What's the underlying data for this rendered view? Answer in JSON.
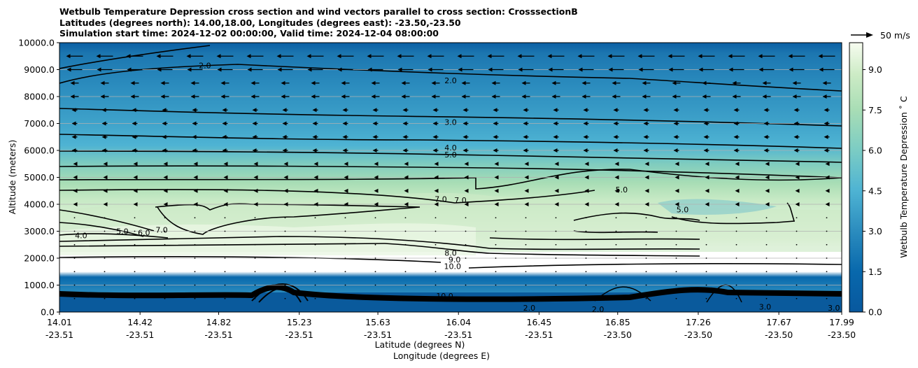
{
  "title_lines": [
    "Wetbulb Temperature Depression cross section and wind vectors parallel to cross section: CrosssectionB",
    "Latitudes (degrees north): 14.00,18.00, Longitudes (degrees east): -23.50,-23.50",
    "Simulation start time: 2024-12-02 00:00:00, Valid time: 2024-12-04 08:00:00"
  ],
  "colors": {
    "low": "#08589e",
    "mid": "#4eb3d3",
    "high": "#a8ddb5",
    "top": "#f7fcf0",
    "contour": "#000000",
    "grid": "#b0b0b0"
  },
  "chart_data": {
    "type": "contour",
    "title": "Wetbulb Temperature Depression cross section and wind vectors parallel to cross section: CrosssectionB",
    "xlabel_1": "Latitude (degrees N)",
    "xlabel_2": "Longitude (degrees E)",
    "ylabel": "Altitude (meters)",
    "ylim": [
      0,
      10000
    ],
    "xlim": [
      14.01,
      17.99
    ],
    "x_ticks": [
      {
        "lat": "14.01",
        "lon": "-23.51",
        "v": 14.01
      },
      {
        "lat": "14.42",
        "lon": "-23.51",
        "v": 14.42
      },
      {
        "lat": "14.82",
        "lon": "-23.51",
        "v": 14.82
      },
      {
        "lat": "15.23",
        "lon": "-23.51",
        "v": 15.23
      },
      {
        "lat": "15.63",
        "lon": "-23.51",
        "v": 15.63
      },
      {
        "lat": "16.04",
        "lon": "-23.51",
        "v": 16.04
      },
      {
        "lat": "16.45",
        "lon": "-23.51",
        "v": 16.45
      },
      {
        "lat": "16.85",
        "lon": "-23.50",
        "v": 16.85
      },
      {
        "lat": "17.26",
        "lon": "-23.50",
        "v": 17.26
      },
      {
        "lat": "17.67",
        "lon": "-23.50",
        "v": 17.67
      },
      {
        "lat": "17.99",
        "lon": "-23.50",
        "v": 17.99
      }
    ],
    "y_ticks": [
      "0.0",
      "1000.0",
      "2000.0",
      "3000.0",
      "4000.0",
      "5000.0",
      "6000.0",
      "7000.0",
      "8000.0",
      "9000.0",
      "10000.0"
    ],
    "y_tick_values": [
      0,
      1000,
      2000,
      3000,
      4000,
      5000,
      6000,
      7000,
      8000,
      9000,
      10000
    ],
    "colorbar": {
      "label": "Wetbulb Temperature Depression ˚ C",
      "range": [
        0,
        10
      ],
      "ticks": [
        "0.0",
        "1.5",
        "3.0",
        "4.5",
        "6.0",
        "7.5",
        "9.0"
      ],
      "tick_values": [
        0,
        1.5,
        3.0,
        4.5,
        6.0,
        7.5,
        9.0
      ]
    },
    "wind_key": {
      "label": "50 m/s",
      "speed": 50
    },
    "contour_labels": [
      {
        "text": "2.0",
        "x": 14.75,
        "y": 9150
      },
      {
        "text": "2.0",
        "x": 16.0,
        "y": 8600
      },
      {
        "text": "3.0",
        "x": 16.0,
        "y": 7050
      },
      {
        "text": "4.0",
        "x": 16.0,
        "y": 6100
      },
      {
        "text": "5.0",
        "x": 16.0,
        "y": 5850
      },
      {
        "text": "7.0",
        "x": 15.95,
        "y": 4200
      },
      {
        "text": "7.0",
        "x": 16.05,
        "y": 4150
      },
      {
        "text": "5.0",
        "x": 16.87,
        "y": 4550
      },
      {
        "text": "5.0",
        "x": 17.18,
        "y": 3800
      },
      {
        "text": "8.0",
        "x": 16.0,
        "y": 2200
      },
      {
        "text": "9.0",
        "x": 16.02,
        "y": 1950
      },
      {
        "text": "10.0",
        "x": 16.01,
        "y": 1700
      },
      {
        "text": "4.0",
        "x": 14.12,
        "y": 2850
      },
      {
        "text": "5.0",
        "x": 14.33,
        "y": 3000
      },
      {
        "text": "6.0",
        "x": 14.44,
        "y": 2950
      },
      {
        "text": "7.0",
        "x": 14.53,
        "y": 3050
      },
      {
        "text": "3.0",
        "x": 17.6,
        "y": 200
      },
      {
        "text": "3.0",
        "x": 17.95,
        "y": 150
      },
      {
        "text": "2.0",
        "x": 16.4,
        "y": 150
      },
      {
        "text": "2.0",
        "x": 16.75,
        "y": 100
      },
      {
        "text": "10.0",
        "x": 15.97,
        "y": 600
      }
    ]
  }
}
